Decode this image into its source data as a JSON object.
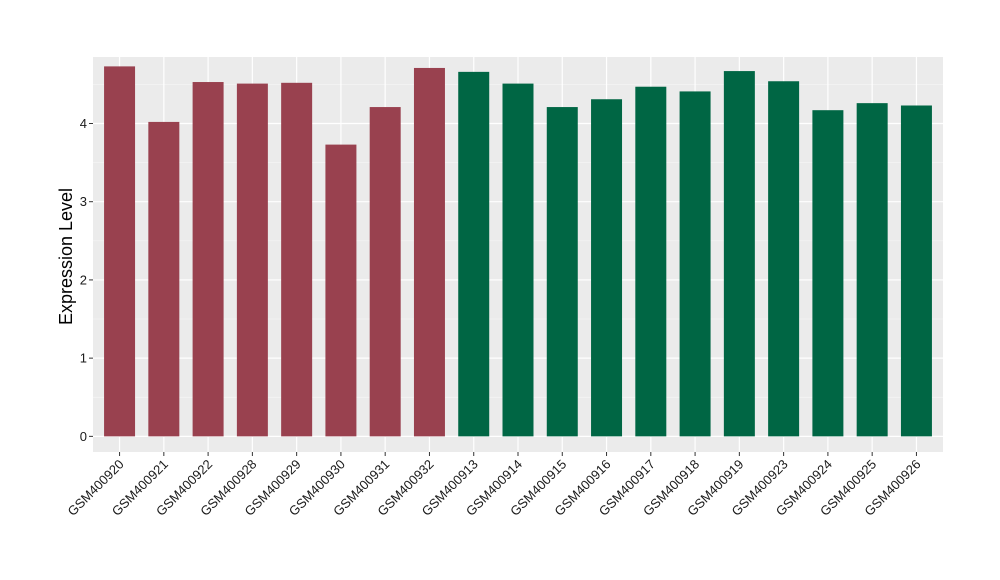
{
  "chart_data": {
    "type": "bar",
    "title": "",
    "xlabel": "",
    "ylabel": "Expression Level",
    "ylim": [
      -0.2,
      4.85
    ],
    "yticks": [
      0,
      1,
      2,
      3,
      4
    ],
    "grid": true,
    "legend": "none",
    "colors": {
      "panel_background": "#ebebeb",
      "grid_major": "#ffffff",
      "grid_minor": "#f5f5f5",
      "group_a": "#99414f",
      "group_b": "#006644"
    },
    "categories": [
      "GSM400920",
      "GSM400921",
      "GSM400922",
      "GSM400928",
      "GSM400929",
      "GSM400930",
      "GSM400931",
      "GSM400932",
      "GSM400913",
      "GSM400914",
      "GSM400915",
      "GSM400916",
      "GSM400917",
      "GSM400918",
      "GSM400919",
      "GSM400923",
      "GSM400924",
      "GSM400925",
      "GSM400926"
    ],
    "values": [
      4.73,
      4.02,
      4.53,
      4.51,
      4.52,
      3.73,
      4.21,
      4.71,
      4.66,
      4.51,
      4.21,
      4.31,
      4.47,
      4.41,
      4.67,
      4.54,
      4.17,
      4.26,
      4.23
    ],
    "bar_colors": [
      "#99414f",
      "#99414f",
      "#99414f",
      "#99414f",
      "#99414f",
      "#99414f",
      "#99414f",
      "#99414f",
      "#006644",
      "#006644",
      "#006644",
      "#006644",
      "#006644",
      "#006644",
      "#006644",
      "#006644",
      "#006644",
      "#006644",
      "#006644"
    ]
  }
}
